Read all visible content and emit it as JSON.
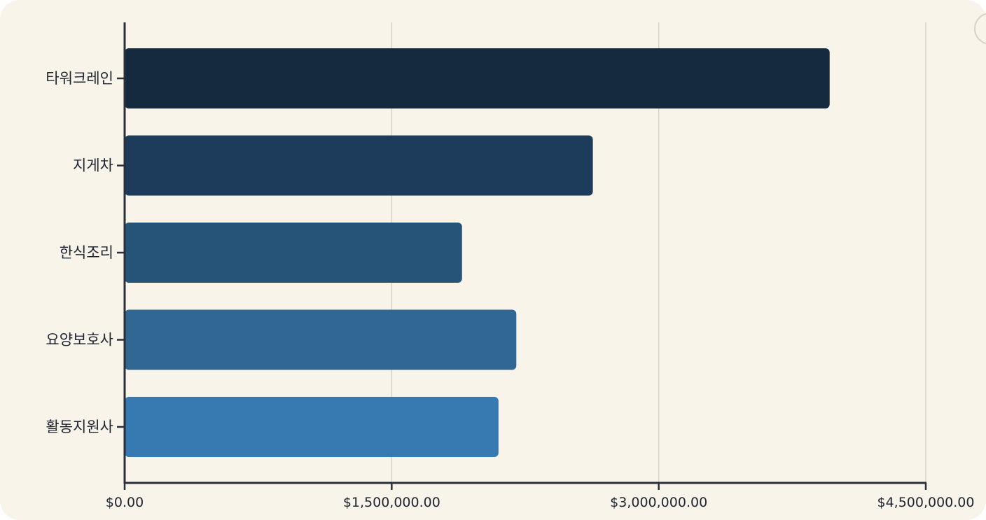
{
  "colors": {
    "background": "#f8f4ea",
    "axis": "#2b2f3a",
    "grid": "#d7d3c8",
    "text": "#1f2430",
    "bars": [
      "#15293f",
      "#1d3b5a",
      "#255478",
      "#306793",
      "#377ab2"
    ]
  },
  "chart_data": {
    "type": "bar",
    "orientation": "horizontal",
    "title": "",
    "xlabel": "",
    "ylabel": "",
    "categories": [
      "타워크레인",
      "지게차",
      "한식조리",
      "요양보호사",
      "활동지원사"
    ],
    "values": [
      3960000,
      2630000,
      1895000,
      2200000,
      2100000
    ],
    "xlim": [
      0,
      4500000
    ],
    "xticks": [
      {
        "value": 0,
        "label": "$0.00"
      },
      {
        "value": 1500000,
        "label": "$1,500,000.00"
      },
      {
        "value": 3000000,
        "label": "$3,000,000.00"
      },
      {
        "value": 4500000,
        "label": "$4,500,000.00"
      }
    ],
    "grid": "vertical"
  }
}
